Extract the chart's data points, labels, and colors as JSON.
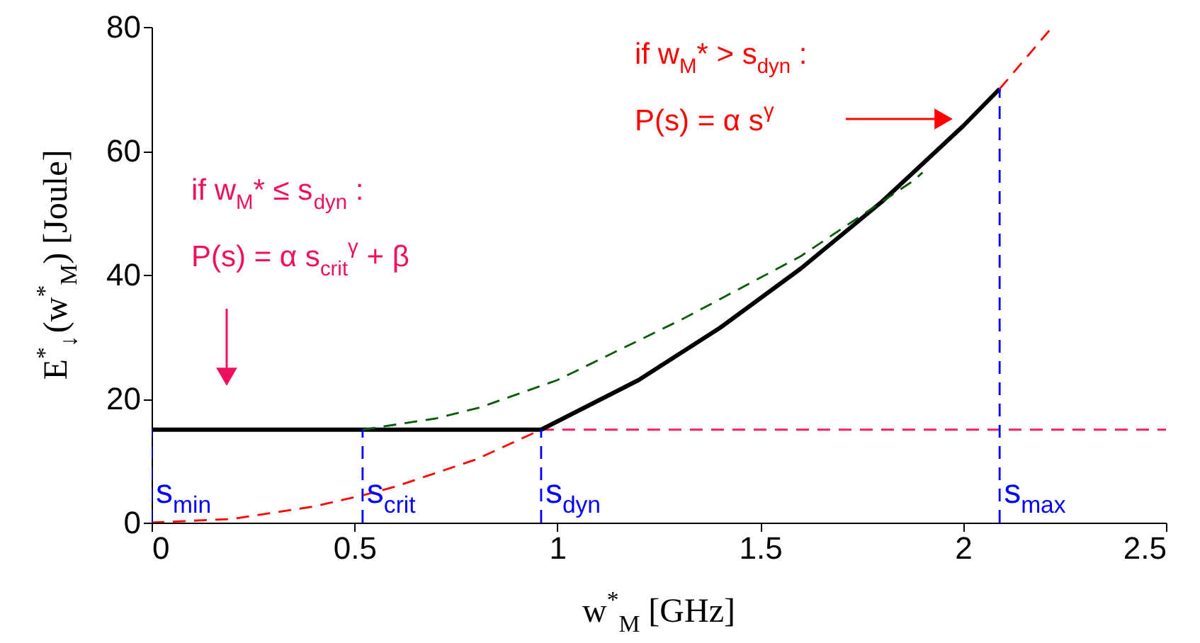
{
  "chart_data": {
    "type": "line",
    "xlabel": "w$^{*}$$_{M}$ [GHz]",
    "ylabel": "E$^{*}$$_{↓}$(w$^{*}$$_{M}$)  [Joule]",
    "xlim": [
      0,
      2.5
    ],
    "xticks": [
      0,
      0.5,
      1,
      1.5,
      2,
      2.5
    ],
    "ylim": [
      0,
      80
    ],
    "yticks": [
      0,
      20,
      40,
      60,
      80
    ],
    "series": [
      {
        "color": "#ff0000",
        "line_style": "dashed",
        "x": [
          0,
          0.2,
          0.4,
          0.52,
          0.6,
          0.8,
          0.96,
          1.2,
          1.4,
          1.6,
          1.8,
          2.0,
          2.09,
          2.22
        ],
        "values": [
          0,
          0.6,
          2.6,
          4.4,
          5.8,
          10.2,
          15,
          null,
          null,
          null,
          null,
          null,
          70,
          80
        ]
      },
      {
        "color": "#f0205a",
        "line_style": "dashed",
        "x": [
          0.96,
          2.5
        ],
        "values": [
          15,
          15
        ]
      },
      {
        "color": "#000000",
        "line_style": "solid",
        "x": [
          0,
          0.96,
          1.2,
          1.4,
          1.6,
          1.8,
          2.0,
          2.09
        ],
        "values": [
          15,
          15,
          23,
          31.4,
          41,
          51.8,
          64,
          70
        ]
      },
      {
        "color": "#0a5a0a",
        "line_style": "dashed",
        "x": [
          0.52,
          0.7,
          0.81,
          1.0,
          1.31,
          1.6,
          1.88,
          1.9
        ],
        "values": [
          15,
          16.8,
          18.6,
          23,
          32.9,
          43,
          55.3,
          56.5
        ]
      },
      {
        "color": "#0000ff",
        "line_style": "dashed",
        "x": [
          0,
          0
        ],
        "values": [
          0,
          15
        ]
      },
      {
        "color": "#0000ff",
        "line_style": "dashed",
        "x": [
          0.52,
          0.52
        ],
        "values": [
          0,
          15
        ]
      },
      {
        "color": "#0000ff",
        "line_style": "dashed",
        "x": [
          0.96,
          0.96
        ],
        "values": [
          0,
          15
        ]
      },
      {
        "color": "#0000ff",
        "line_style": "dashed",
        "x": [
          2.09,
          2.09
        ],
        "values": [
          0,
          70
        ]
      }
    ],
    "annotations": [
      "if w$_{M}$* > s$_{dyn}$ :",
      "P(s) = α s$^{γ}$",
      "if w$_{M}$* ≤ s$_{dyn}$ :",
      "P(s) = α s$_{crit}$$^{γ}$ + β",
      {
        "text": "s$_{min}$",
        "x": 0
      },
      {
        "text": "s$_{crit}$",
        "x": 0.52
      },
      {
        "text": "s$_{dyn}$",
        "x": 0.96
      },
      {
        "text": "s$_{max}$",
        "x": 2.09
      }
    ]
  }
}
